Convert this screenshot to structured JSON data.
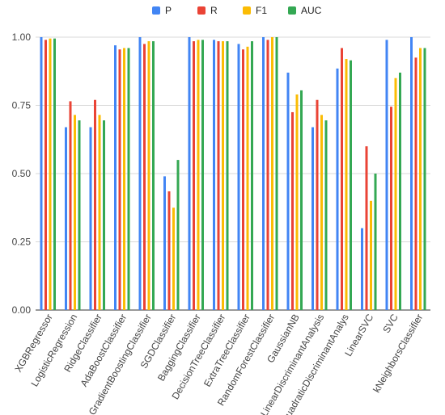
{
  "chart_data": {
    "type": "bar",
    "title": "",
    "xlabel": "",
    "ylabel": "",
    "ylim": [
      0,
      1
    ],
    "yticks": [
      "0.00",
      "0.25",
      "0.50",
      "0.75",
      "1.00"
    ],
    "grid": "horizontal",
    "legend_position": "top-center",
    "categories": [
      "XGBRegressor",
      "LogisticRegression",
      "RidgeClassifier",
      "AdaBoostClassifier",
      "GradientBoostingClassifier",
      "SGDClassifier",
      "BaggingClassifier",
      "DecisionTreeClassifier",
      "ExtraTreeClassifier",
      "RandomForestClassifier",
      "GaussianNB",
      "LinearDiscriminantAnalysis",
      "QuadraticDiscriminantAnalys",
      "LinearSVC",
      "SVC",
      "kNeighborsClassifier"
    ],
    "series": [
      {
        "name": "P",
        "color": "#4285f4",
        "values": [
          1.0,
          0.67,
          0.67,
          0.97,
          1.0,
          0.49,
          1.0,
          0.99,
          0.975,
          1.0,
          0.87,
          0.67,
          0.885,
          0.3,
          0.99,
          1.0
        ]
      },
      {
        "name": "R",
        "color": "#ea4335",
        "values": [
          0.99,
          0.765,
          0.77,
          0.955,
          0.975,
          0.435,
          0.985,
          0.985,
          0.955,
          0.99,
          0.725,
          0.77,
          0.96,
          0.6,
          0.745,
          0.925
        ]
      },
      {
        "name": "F1",
        "color": "#fbbc04",
        "values": [
          0.995,
          0.715,
          0.715,
          0.96,
          0.985,
          0.375,
          0.99,
          0.985,
          0.965,
          1.0,
          0.79,
          0.715,
          0.92,
          0.4,
          0.85,
          0.96
        ]
      },
      {
        "name": "AUC",
        "color": "#34a853",
        "values": [
          0.995,
          0.695,
          0.695,
          0.96,
          0.985,
          0.55,
          0.99,
          0.985,
          0.985,
          1.0,
          0.805,
          0.695,
          0.915,
          0.5,
          0.87,
          0.96
        ]
      }
    ]
  }
}
